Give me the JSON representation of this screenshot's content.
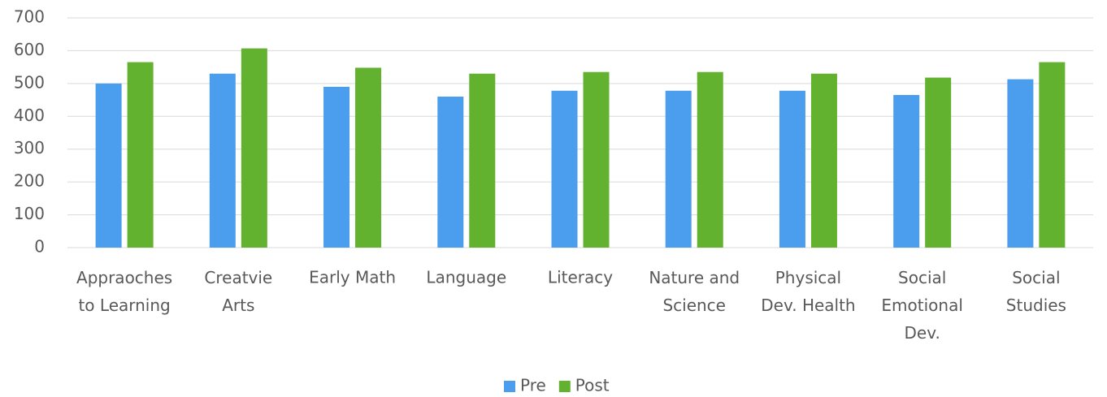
{
  "chart_data": {
    "type": "bar",
    "categories": [
      "Appraoches\nto Learning",
      "Creatvie\nArts",
      "Early Math",
      "Language",
      "Literacy",
      "Nature and\nScience",
      "Physical\nDev. Health",
      "Social\nEmotional\nDev.",
      "Social\nStudies"
    ],
    "series": [
      {
        "name": "Pre",
        "color": "#4a9eed",
        "values": [
          500,
          530,
          490,
          460,
          478,
          478,
          478,
          465,
          513
        ]
      },
      {
        "name": "Post",
        "color": "#62b22f",
        "values": [
          565,
          607,
          548,
          530,
          535,
          535,
          530,
          518,
          565
        ]
      }
    ],
    "ylim": [
      0,
      700
    ],
    "yticks": [
      0,
      100,
      200,
      300,
      400,
      500,
      600,
      700
    ],
    "grid": true,
    "legend": "bottom"
  }
}
